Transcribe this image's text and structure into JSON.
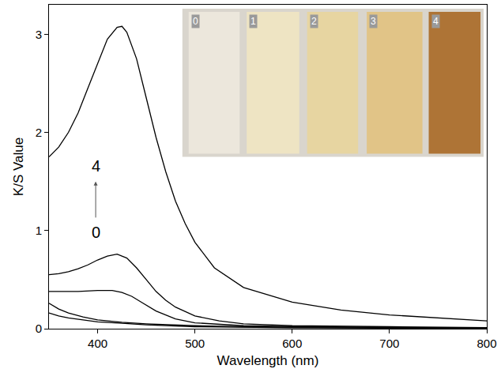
{
  "chart_data": {
    "type": "line",
    "x_label": "Wavelength (nm)",
    "y_label": "K/S Value",
    "xlim": [
      350,
      800
    ],
    "xticks": [
      400,
      500,
      600,
      700,
      800
    ],
    "ylim": [
      0,
      3.3
    ],
    "yticks": [
      0,
      1,
      2,
      3
    ],
    "grid": false,
    "color": "#000000",
    "series": [
      {
        "name": "0",
        "x": [
          350,
          360,
          370,
          385,
          400,
          425,
          450,
          500,
          550,
          600,
          700,
          800
        ],
        "values": [
          0.16,
          0.13,
          0.11,
          0.09,
          0.07,
          0.055,
          0.04,
          0.02,
          0.015,
          0.01,
          0.007,
          0.005
        ]
      },
      {
        "name": "1",
        "x": [
          350,
          360,
          370,
          385,
          400,
          425,
          450,
          500,
          550,
          600,
          700,
          800
        ],
        "values": [
          0.26,
          0.2,
          0.16,
          0.12,
          0.09,
          0.065,
          0.05,
          0.03,
          0.02,
          0.015,
          0.008,
          0.005
        ]
      },
      {
        "name": "2",
        "x": [
          350,
          365,
          380,
          400,
          415,
          425,
          435,
          445,
          460,
          480,
          500,
          550,
          600,
          700,
          800
        ],
        "values": [
          0.38,
          0.38,
          0.38,
          0.39,
          0.39,
          0.37,
          0.33,
          0.27,
          0.18,
          0.1,
          0.06,
          0.03,
          0.02,
          0.012,
          0.01
        ]
      },
      {
        "name": "3",
        "x": [
          350,
          360,
          370,
          380,
          390,
          400,
          410,
          420,
          430,
          440,
          450,
          460,
          470,
          480,
          500,
          525,
          550,
          600,
          700,
          800
        ],
        "values": [
          0.55,
          0.56,
          0.58,
          0.61,
          0.65,
          0.7,
          0.74,
          0.76,
          0.72,
          0.62,
          0.5,
          0.38,
          0.29,
          0.22,
          0.13,
          0.08,
          0.05,
          0.03,
          0.02,
          0.01
        ]
      },
      {
        "name": "4",
        "x": [
          350,
          360,
          370,
          380,
          390,
          400,
          410,
          420,
          425,
          430,
          440,
          450,
          460,
          470,
          480,
          490,
          500,
          520,
          550,
          600,
          650,
          700,
          750,
          800
        ],
        "values": [
          1.75,
          1.85,
          2.0,
          2.2,
          2.45,
          2.7,
          2.95,
          3.07,
          3.08,
          3.02,
          2.75,
          2.35,
          1.95,
          1.6,
          1.3,
          1.07,
          0.88,
          0.62,
          0.42,
          0.27,
          0.19,
          0.14,
          0.11,
          0.08
        ]
      }
    ]
  }
}
